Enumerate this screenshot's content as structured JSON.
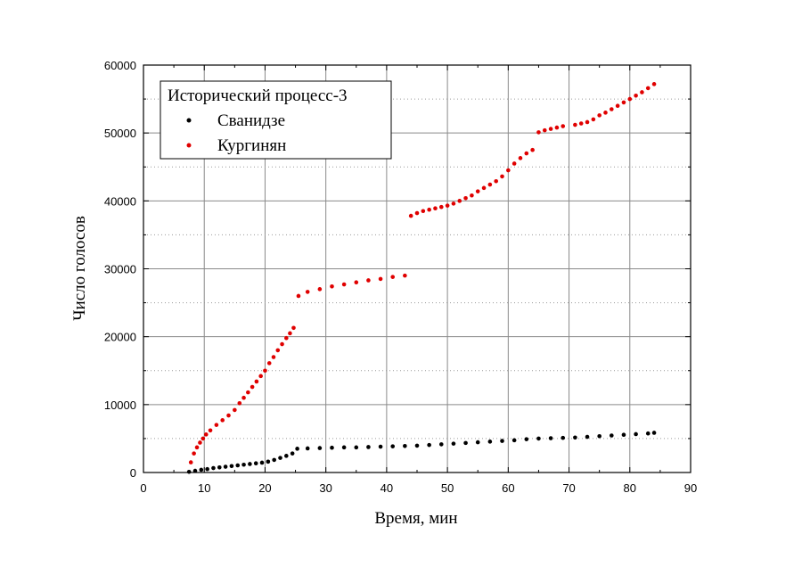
{
  "chart_data": {
    "type": "scatter",
    "title": "",
    "xlabel": "Время, мин",
    "ylabel": "Число голосов",
    "xlim": [
      0,
      90
    ],
    "ylim": [
      0,
      60000
    ],
    "x_ticks": [
      0,
      10,
      20,
      30,
      40,
      50,
      60,
      70,
      80,
      90
    ],
    "y_ticks": [
      0,
      10000,
      20000,
      30000,
      40000,
      50000,
      60000
    ],
    "grid": true,
    "legend": {
      "title": "Исторический процесс-3",
      "placement": "top-left"
    },
    "series": [
      {
        "name": "Сванидзе",
        "color": "#000000",
        "x": [
          7.5,
          8.5,
          9.5,
          10.5,
          11.5,
          12.5,
          13.5,
          14.5,
          15.5,
          16.5,
          17.5,
          18.5,
          19.5,
          20.5,
          21.5,
          22.5,
          23.5,
          24.5,
          25.3,
          27,
          29,
          31,
          33,
          35,
          37,
          39,
          41,
          43,
          45,
          47,
          49,
          51,
          53,
          55,
          57,
          59,
          61,
          63,
          65,
          67,
          69,
          71,
          73,
          75,
          77,
          79,
          81,
          83,
          84
        ],
        "y": [
          100,
          250,
          400,
          500,
          650,
          750,
          850,
          950,
          1050,
          1150,
          1250,
          1350,
          1450,
          1600,
          1850,
          2150,
          2450,
          2800,
          3500,
          3550,
          3600,
          3650,
          3700,
          3700,
          3750,
          3800,
          3850,
          3900,
          3950,
          4050,
          4150,
          4250,
          4350,
          4450,
          4550,
          4650,
          4750,
          4900,
          5000,
          5050,
          5100,
          5150,
          5250,
          5350,
          5450,
          5550,
          5650,
          5750,
          5850
        ]
      },
      {
        "name": "Кургинян",
        "color": "#e00000",
        "x": [
          7.8,
          8.3,
          8.8,
          9.3,
          9.8,
          10.3,
          11.0,
          12.0,
          13.0,
          14.0,
          15.0,
          15.8,
          16.5,
          17.2,
          17.9,
          18.6,
          19.3,
          20.0,
          20.7,
          21.4,
          22.1,
          22.8,
          23.5,
          24.1,
          24.7,
          25.5,
          27,
          29,
          31,
          33,
          35,
          37,
          39,
          41,
          43,
          44,
          45,
          46,
          47,
          48,
          49,
          50,
          51,
          52,
          53,
          54,
          55,
          56,
          57,
          58,
          59,
          60,
          61,
          62,
          63,
          64,
          65,
          66,
          67,
          68,
          69,
          71,
          72,
          73,
          74,
          75,
          76,
          77,
          78,
          79,
          80,
          81,
          82,
          83,
          84
        ],
        "y": [
          1500,
          2800,
          3700,
          4400,
          5000,
          5600,
          6200,
          7000,
          7700,
          8400,
          9200,
          10200,
          11000,
          11800,
          12600,
          13400,
          14200,
          15000,
          16100,
          17000,
          18000,
          18900,
          19800,
          20500,
          21300,
          26000,
          26600,
          27000,
          27400,
          27700,
          28000,
          28300,
          28500,
          28800,
          29000,
          37800,
          38200,
          38500,
          38700,
          38900,
          39100,
          39300,
          39600,
          40000,
          40400,
          40800,
          41400,
          41900,
          42400,
          42900,
          43600,
          44500,
          45500,
          46300,
          47000,
          47500,
          50100,
          50400,
          50600,
          50800,
          51000,
          51200,
          51400,
          51600,
          52000,
          52600,
          53000,
          53500,
          54000,
          54500,
          55000,
          55500,
          56000,
          56600,
          57200
        ]
      }
    ]
  }
}
